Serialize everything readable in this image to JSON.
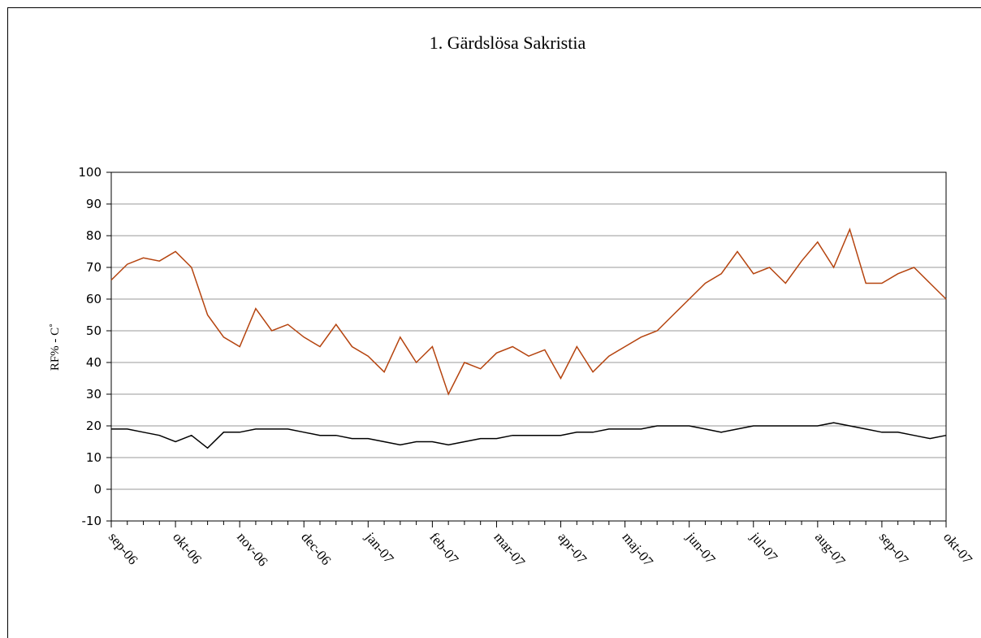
{
  "chart_data": {
    "type": "line",
    "title": "1. Gärdslösa Sakristia",
    "y_label": "RF% - C˚",
    "categories": [
      "sep-06",
      null,
      null,
      null,
      "okt-06",
      null,
      null,
      null,
      "nov-06",
      null,
      null,
      null,
      "dec-06",
      null,
      null,
      null,
      "jan-07",
      null,
      null,
      null,
      "feb-07",
      null,
      null,
      null,
      "mar-07",
      null,
      null,
      null,
      "apr-07",
      null,
      null,
      null,
      "maj-07",
      null,
      null,
      null,
      "jun-07",
      null,
      null,
      null,
      "jul-07",
      null,
      null,
      null,
      "aug-07",
      null,
      null,
      null,
      "sep-07",
      null,
      null,
      null,
      "okt-07"
    ],
    "series": [
      {
        "color": "#b5440f",
        "values": [
          66,
          71,
          73,
          72,
          75,
          70,
          55,
          48,
          45,
          57,
          50,
          52,
          48,
          45,
          52,
          45,
          42,
          37,
          48,
          40,
          45,
          30,
          40,
          38,
          43,
          45,
          42,
          44,
          35,
          45,
          37,
          42,
          45,
          48,
          50,
          55,
          60,
          65,
          68,
          75,
          68,
          70,
          65,
          72,
          78,
          70,
          82,
          65,
          65,
          68,
          70,
          65,
          60
        ]
      },
      {
        "color": "#000000",
        "values": [
          19,
          19,
          18,
          17,
          15,
          17,
          13,
          18,
          18,
          19,
          19,
          19,
          18,
          17,
          17,
          16,
          16,
          15,
          14,
          15,
          15,
          14,
          15,
          16,
          16,
          17,
          17,
          17,
          17,
          18,
          18,
          19,
          19,
          19,
          20,
          20,
          20,
          19,
          18,
          19,
          20,
          20,
          20,
          20,
          20,
          21,
          20,
          19,
          18,
          18,
          17,
          16,
          17
        ]
      }
    ],
    "ylim": [
      -10,
      100
    ],
    "yticks": [
      -10,
      0,
      10,
      20,
      30,
      40,
      50,
      60,
      70,
      80,
      90,
      100
    ],
    "grid": true
  }
}
